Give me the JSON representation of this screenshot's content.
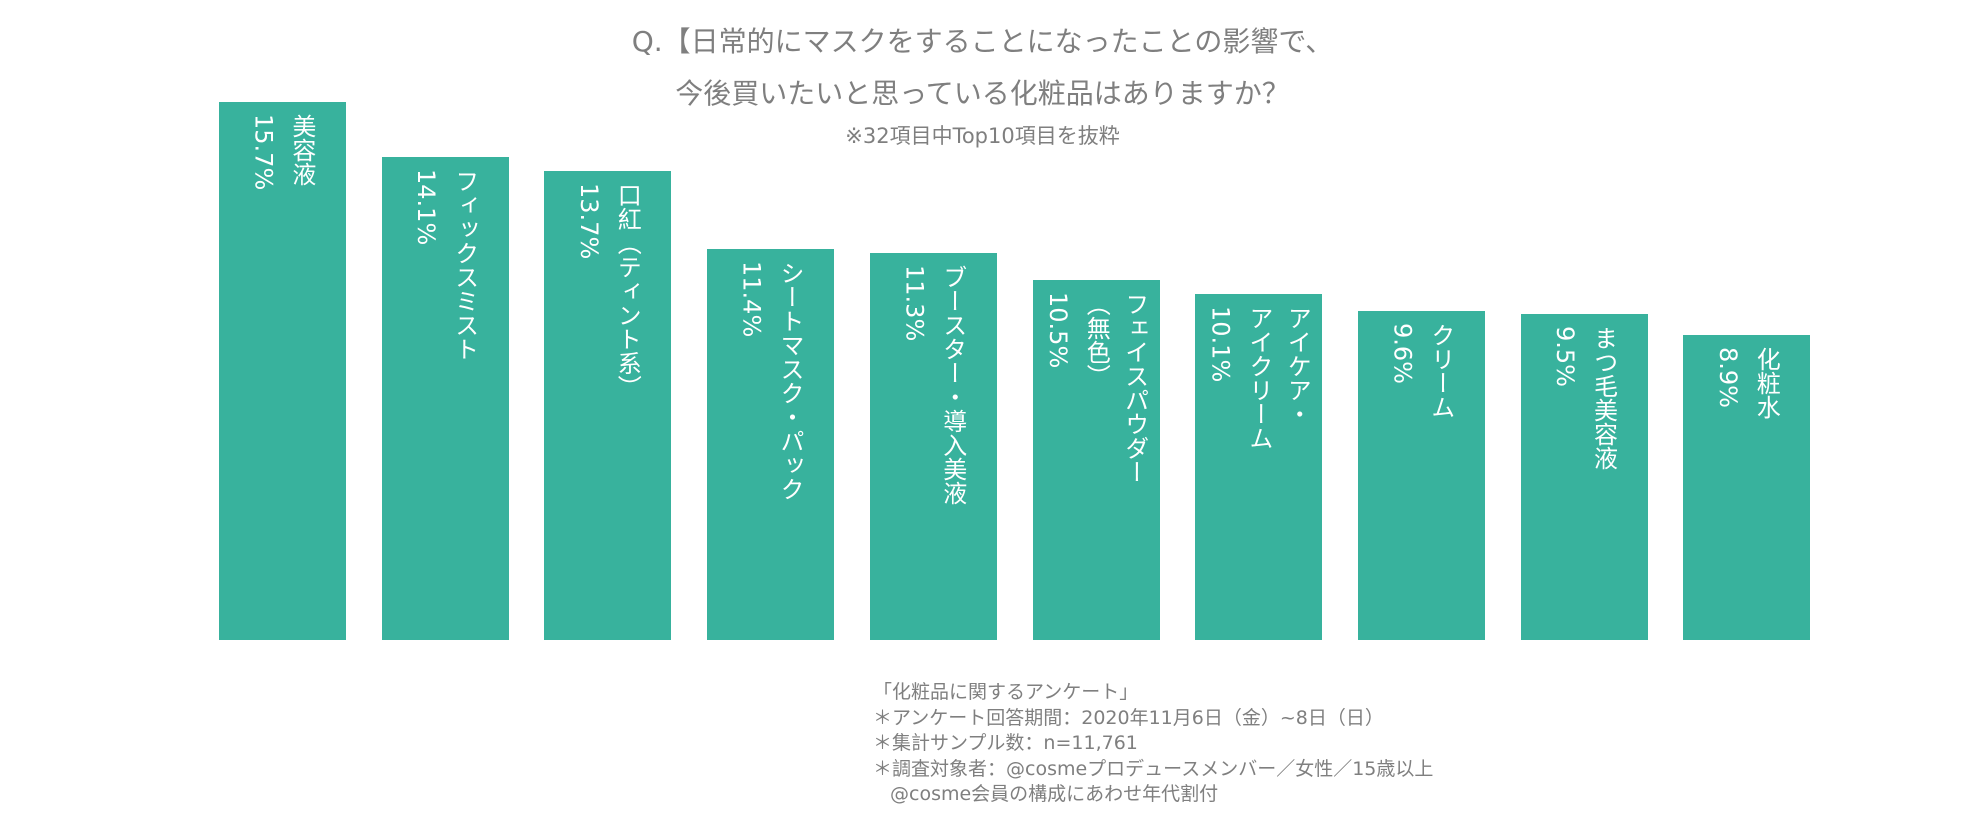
{
  "chart_data": {
    "type": "bar",
    "title": [
      "Q.【日常的にマスクをすることになったことの影響で、",
      "今後買いたいと思っている化粧品はありますか？"
    ],
    "subtitle": "※32項目中Top10項目を抜粋",
    "categories": [
      "美容液",
      "フィックスミスト",
      "口紅（ティント系）",
      "シートマスク・パック",
      "ブースター・導入美液",
      "フェイスパウダー\n（無色）",
      "アイケア・\nアイクリーム",
      "クリーム",
      "まつ毛美容液",
      "化粧水"
    ],
    "values": [
      15.7,
      14.1,
      13.7,
      11.4,
      11.3,
      10.5,
      10.1,
      9.6,
      9.5,
      8.9
    ],
    "value_labels": [
      "15.7%",
      "14.1%",
      "13.7%",
      "11.4%",
      "11.3%",
      "10.5%",
      "10.1%",
      "9.6%",
      "9.5%",
      "8.9%"
    ],
    "color": "#38b29d",
    "notes": [
      "「化粧品に関するアンケート」",
      "＊アンケート回答期間：2020年11月6日（金）~8日（日）",
      "＊集計サンプル数：n=11,761",
      "＊調査対象者：@cosmeプロデュースメンバー／女性／15歳以上",
      "@cosme会員の構成にあわせ年代割付"
    ]
  }
}
